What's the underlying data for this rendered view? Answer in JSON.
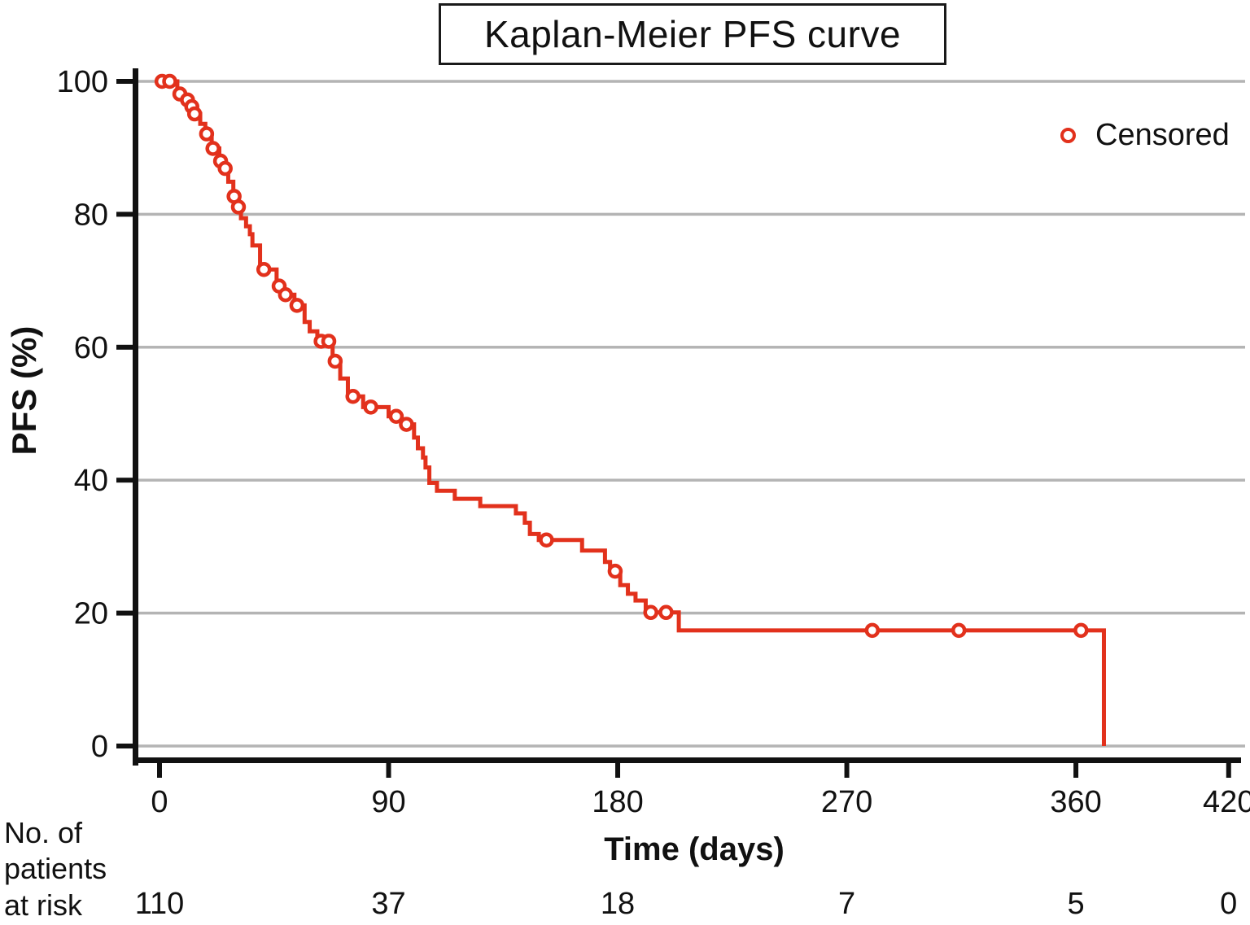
{
  "title": "Kaplan-Meier PFS curve",
  "legend": {
    "censored_label": "Censored",
    "marker": "open-circle"
  },
  "colors": {
    "curve": "#e2311c",
    "grid": "#b4b4b4",
    "axis": "#111111",
    "background": "#ffffff"
  },
  "chart_data": {
    "type": "line",
    "subtype": "kaplan-meier-step",
    "title": "Kaplan-Meier PFS curve",
    "xlabel": "Time (days)",
    "ylabel": "PFS (%)",
    "xlim": [
      0,
      420
    ],
    "ylim": [
      0,
      100
    ],
    "x_ticks": [
      0,
      90,
      180,
      270,
      360,
      420
    ],
    "y_ticks": [
      0,
      20,
      40,
      60,
      80,
      100
    ],
    "grid": "horizontal-only",
    "legend_position": "top-right",
    "series": [
      {
        "name": "PFS",
        "steps": [
          [
            0,
            100
          ],
          [
            7,
            98.1
          ],
          [
            10,
            97.2
          ],
          [
            12,
            96.2
          ],
          [
            13.5,
            95.1
          ],
          [
            16,
            93.6
          ],
          [
            18,
            92.1
          ],
          [
            20.5,
            89.9
          ],
          [
            23.5,
            88.0
          ],
          [
            25,
            86.9
          ],
          [
            27,
            84.9
          ],
          [
            29,
            82.7
          ],
          [
            30.5,
            81.1
          ],
          [
            32,
            79.4
          ],
          [
            34,
            78.2
          ],
          [
            35.5,
            77.0
          ],
          [
            36.5,
            75.3
          ],
          [
            39.5,
            71.7
          ],
          [
            46,
            69.2
          ],
          [
            48.5,
            67.9
          ],
          [
            53,
            66.3
          ],
          [
            57,
            63.8
          ],
          [
            59,
            62.4
          ],
          [
            62,
            60.9
          ],
          [
            68,
            57.9
          ],
          [
            71,
            55.3
          ],
          [
            74,
            52.6
          ],
          [
            80,
            51.0
          ],
          [
            90,
            49.6
          ],
          [
            95,
            48.4
          ],
          [
            100,
            46.4
          ],
          [
            101.5,
            44.8
          ],
          [
            103.5,
            43.4
          ],
          [
            104.5,
            41.9
          ],
          [
            106,
            39.6
          ],
          [
            109,
            38.4
          ],
          [
            116,
            37.2
          ],
          [
            126,
            36.1
          ],
          [
            140,
            35.0
          ],
          [
            143.5,
            33.6
          ],
          [
            145.5,
            31.9
          ],
          [
            149,
            31.0
          ],
          [
            166,
            29.4
          ],
          [
            175,
            27.7
          ],
          [
            177,
            26.3
          ],
          [
            181,
            24.2
          ],
          [
            184,
            22.9
          ],
          [
            187,
            21.9
          ],
          [
            191,
            20.1
          ],
          [
            204,
            17.4
          ],
          [
            371,
            0
          ]
        ],
        "censored": [
          [
            1,
            100
          ],
          [
            4,
            100
          ],
          [
            8,
            98.1
          ],
          [
            11,
            97.2
          ],
          [
            12.7,
            96.2
          ],
          [
            13.8,
            95.1
          ],
          [
            18.5,
            92.1
          ],
          [
            21,
            89.9
          ],
          [
            24,
            88.0
          ],
          [
            25.8,
            86.9
          ],
          [
            29.3,
            82.7
          ],
          [
            31,
            81.1
          ],
          [
            41,
            71.7
          ],
          [
            47,
            69.2
          ],
          [
            49.5,
            67.9
          ],
          [
            54,
            66.3
          ],
          [
            63.5,
            60.9
          ],
          [
            66.5,
            60.9
          ],
          [
            69,
            57.9
          ],
          [
            76,
            52.6
          ],
          [
            83,
            51.0
          ],
          [
            93,
            49.6
          ],
          [
            97,
            48.4
          ],
          [
            152,
            31.0
          ],
          [
            179,
            26.3
          ],
          [
            193,
            20.1
          ],
          [
            199,
            20.1
          ],
          [
            280,
            17.4
          ],
          [
            314,
            17.4
          ],
          [
            362,
            17.4
          ]
        ]
      }
    ]
  },
  "risk_table": {
    "label_lines": "No. of\npatients\nat risk",
    "times": [
      0,
      90,
      180,
      270,
      360,
      420
    ],
    "counts": [
      "110",
      "37",
      "18",
      "7",
      "5",
      "0"
    ]
  }
}
